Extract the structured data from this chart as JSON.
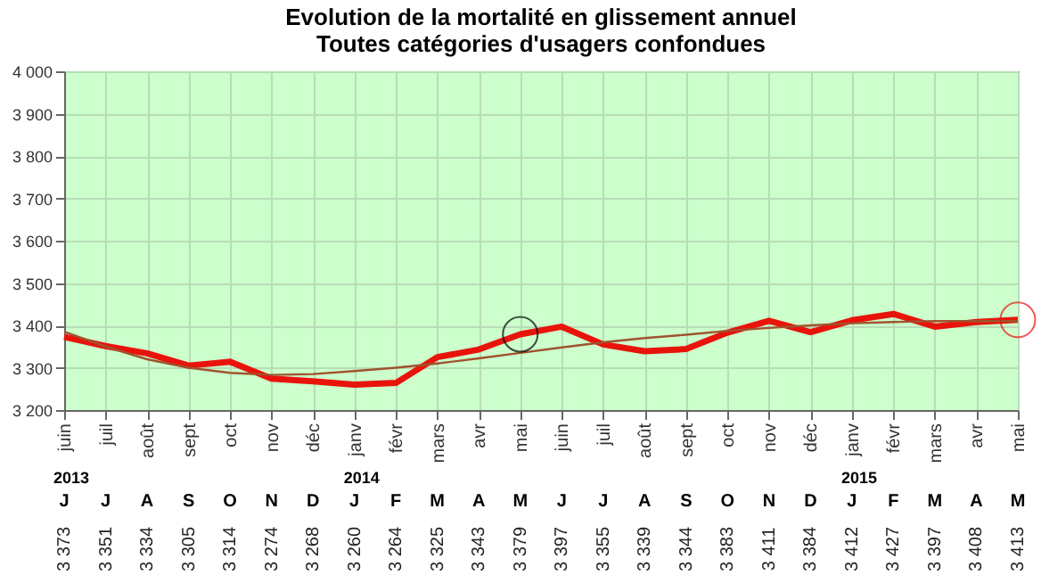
{
  "chart_data": {
    "type": "line",
    "title": "Evolution de la mortalité en glissement annuel",
    "subtitle": "Toutes catégories d'usagers confondues",
    "categories": [
      "juin",
      "juil",
      "août",
      "sept",
      "oct",
      "nov",
      "déc",
      "janv",
      "févr",
      "mars",
      "avr",
      "mai",
      "juin",
      "juil",
      "août",
      "sept",
      "oct",
      "nov",
      "déc",
      "janv",
      "févr",
      "mars",
      "avr",
      "mai"
    ],
    "series": [
      {
        "color": "#e8140c",
        "values": [
          3373,
          3351,
          3334,
          3305,
          3314,
          3274,
          3268,
          3260,
          3264,
          3325,
          3343,
          3379,
          3397,
          3355,
          3339,
          3344,
          3383,
          3411,
          3384,
          3412,
          3427,
          3397,
          3408,
          3413
        ],
        "value_labels": [
          "3 373",
          "3 351",
          "3 334",
          "3 305",
          "3 314",
          "3 274",
          "3 268",
          "3 260",
          "3 264",
          "3 325",
          "3 343",
          "3 379",
          "3 397",
          "3 355",
          "3 339",
          "3 344",
          "3 383",
          "3 411",
          "3 384",
          "3 412",
          "3 427",
          "3 397",
          "3 408",
          "3 413"
        ]
      },
      {
        "color": "#a0522d",
        "values": [
          3385,
          3350,
          3320,
          3300,
          3288,
          3283,
          3285,
          3292,
          3300,
          3310,
          3322,
          3335,
          3348,
          3360,
          3370,
          3378,
          3387,
          3394,
          3400,
          3405,
          3408,
          3410,
          3410,
          3410
        ]
      },
      {
        "type": "scatter",
        "marker": "circle",
        "color": "#000000",
        "values": [
          null,
          null,
          null,
          null,
          null,
          null,
          null,
          null,
          null,
          null,
          null,
          3379,
          null,
          null,
          null,
          null,
          null,
          null,
          null,
          null,
          null,
          null,
          null,
          null
        ]
      },
      {
        "type": "scatter",
        "marker": "circle",
        "color": "#e8140c",
        "values": [
          null,
          null,
          null,
          null,
          null,
          null,
          null,
          null,
          null,
          null,
          null,
          null,
          null,
          null,
          null,
          null,
          null,
          null,
          null,
          null,
          null,
          null,
          null,
          3413
        ]
      }
    ],
    "ylim": [
      3200,
      4000
    ],
    "yticks": [
      {
        "value": 3200,
        "label": "3 200"
      },
      {
        "value": 3300,
        "label": "3 300"
      },
      {
        "value": 3400,
        "label": "3 400"
      },
      {
        "value": 3500,
        "label": "3 500"
      },
      {
        "value": 3600,
        "label": "3 600"
      },
      {
        "value": 3700,
        "label": "3 700"
      },
      {
        "value": 3800,
        "label": "3 800"
      },
      {
        "value": 3900,
        "label": "3 900"
      },
      {
        "value": 4000,
        "label": "4 000"
      }
    ],
    "grid": true,
    "annotations": [
      "2013",
      "2014",
      "2015",
      "J",
      "J",
      "A",
      "S",
      "O",
      "N",
      "D",
      "J",
      "F",
      "M",
      "A",
      "M",
      "J",
      "J",
      "A",
      "S",
      "O",
      "N",
      "D",
      "J",
      "F",
      "M",
      "A",
      "M"
    ]
  }
}
